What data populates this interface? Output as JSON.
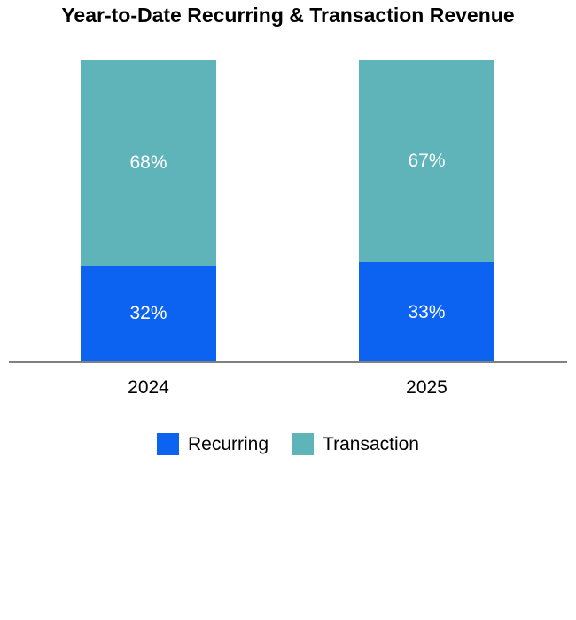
{
  "chart": {
    "title": "Year-to-Date Recurring & Transaction Revenue"
  },
  "chart_data": {
    "type": "bar",
    "stacked": true,
    "unit": "percent",
    "title": "Year-to-Date Recurring & Transaction Revenue",
    "categories": [
      "2024",
      "2025"
    ],
    "series": [
      {
        "name": "Recurring",
        "color": "#0d63f1",
        "values": [
          32,
          33
        ],
        "labels": [
          "32%",
          "33%"
        ]
      },
      {
        "name": "Transaction",
        "color": "#5fb4ba",
        "values": [
          68,
          67
        ],
        "labels": [
          "68%",
          "67%"
        ]
      }
    ],
    "ylim": [
      0,
      100
    ],
    "grid": false,
    "legend_position": "bottom",
    "axis_line_color": "#808080",
    "data_label_color": "#ffffff"
  }
}
